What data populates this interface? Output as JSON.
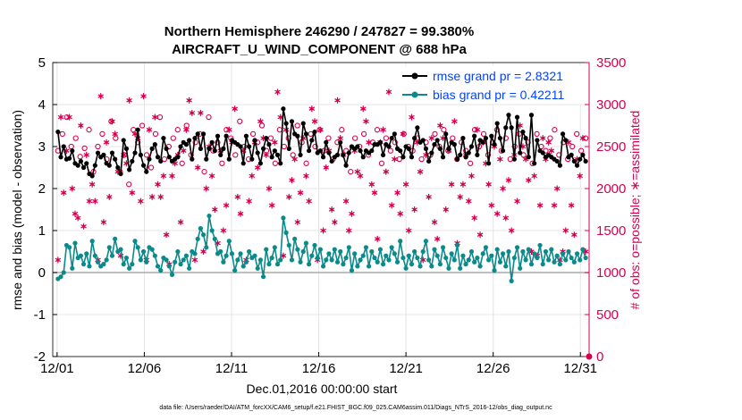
{
  "chart_data": {
    "type": "line",
    "title": "Northern Hemisphere 246290 / 247827 = 99.380%",
    "subtitle": "AIRCRAFT_U_WIND_COMPONENT @ 688 hPa",
    "xlabel": "Dec.01,2016 00:00:00 start",
    "ylabel": "rmse and bias (model - observation)",
    "ylabel_right": "# of obs: o=possible; ∗=assimilated",
    "footer": "data file: /Users/raeder/DAI/ATM_forcXX/CAM6_setup/f.e21.FHIST_BGC.f09_025.CAM6assim.011/Diags_NTrS_2016-12/obs_diag_output.nc",
    "xlim": [
      0.75,
      31.5
    ],
    "ylim": [
      -2,
      5
    ],
    "ylim_right": [
      0,
      3500
    ],
    "x_tick_labels": [
      "12/01",
      "12/06",
      "12/11",
      "12/16",
      "12/21",
      "12/26",
      "12/31"
    ],
    "x_tick_values": [
      1,
      6,
      11,
      16,
      21,
      26,
      31
    ],
    "y_ticks": [
      -2,
      -1,
      0,
      1,
      2,
      3,
      4,
      5
    ],
    "y_ticks_right": [
      0,
      500,
      1000,
      1500,
      2000,
      2500,
      3000,
      3500
    ],
    "grid": true,
    "legend_position": "top-right",
    "series": [
      {
        "name": "rmse",
        "legend_label": "rmse grand pr = 2.8321",
        "color": "#000000",
        "axis": "left",
        "values": [
          3.35,
          2.75,
          3.0,
          2.7,
          2.72,
          2.9,
          2.6,
          2.55,
          2.65,
          2.5,
          2.6,
          2.35,
          2.3,
          2.55,
          2.85,
          2.75,
          2.8,
          2.6,
          2.55,
          2.85,
          2.7,
          2.5,
          2.35,
          3.15,
          2.95,
          2.45,
          2.65,
          2.85,
          3.4,
          2.8,
          2.55,
          2.4,
          2.7,
          2.95,
          3.05,
          2.75,
          2.65,
          3.2,
          2.95,
          2.75,
          2.65,
          2.7,
          2.75,
          3.0,
          3.1,
          3.05,
          3.15,
          2.7,
          3.2,
          3.3,
          2.95,
          3.3,
          2.7,
          2.95,
          3.1,
          2.9,
          3.25,
          2.8,
          2.95,
          3.25,
          2.7,
          3.15,
          3.1,
          3.05,
          3.0,
          2.6,
          3.25,
          3.0,
          2.7,
          3.15,
          2.85,
          2.6,
          2.95,
          3.2,
          3.05,
          2.75,
          2.9,
          2.8,
          2.6,
          3.9,
          3.55,
          2.95,
          3.6,
          3.3,
          3.25,
          2.8,
          3.55,
          3.3,
          2.9,
          3.15,
          3.35,
          2.85,
          2.9,
          2.75,
          3.1,
          2.85,
          2.65,
          2.75,
          2.8,
          3.1,
          2.8,
          2.55,
          2.85,
          3.0,
          2.95,
          3.0,
          2.9,
          2.75,
          2.9,
          2.85,
          2.9,
          3.05,
          3.05,
          3.1,
          2.8,
          3.05,
          3.0,
          3.2,
          3.3,
          2.95,
          2.9,
          2.75,
          3.0,
          2.95,
          2.75,
          3.2,
          3.45,
          3.1,
          3.15,
          2.95,
          2.65,
          2.85,
          3.05,
          3.15,
          2.95,
          2.75,
          3.3,
          2.95,
          3.1,
          3.05,
          2.7,
          2.8,
          3.2,
          2.75,
          2.85,
          3.0,
          3.25,
          2.8,
          3.15,
          3.1,
          3.2,
          2.6,
          3.25,
          3.05,
          3.55,
          3.2,
          2.9,
          3.45,
          3.75,
          3.45,
          2.7,
          3.7,
          2.85,
          3.35,
          3.2,
          2.75,
          3.75,
          2.6,
          3.15,
          2.9,
          2.85,
          2.75,
          2.8,
          2.75,
          2.7,
          2.65,
          2.55,
          3.3,
          3.15,
          2.75,
          2.8,
          2.65,
          2.55,
          2.7,
          2.8,
          2.65
        ]
      },
      {
        "name": "bias",
        "legend_label": "bias grand pr = 0.42211",
        "color": "#0a8a8a",
        "axis": "left",
        "values": [
          -0.15,
          -0.1,
          0.0,
          0.65,
          0.6,
          0.1,
          0.7,
          0.35,
          0.4,
          0.2,
          0.45,
          0.15,
          0.75,
          0.4,
          0.25,
          0.15,
          0.2,
          0.3,
          0.6,
          0.4,
          0.8,
          0.5,
          0.55,
          0.2,
          0.35,
          0.1,
          0.2,
          0.75,
          0.6,
          0.3,
          0.5,
          0.25,
          0.6,
          0.55,
          0.4,
          0.15,
          0.05,
          0.35,
          0.3,
          0.15,
          -0.05,
          0.25,
          0.5,
          0.2,
          0.3,
          0.4,
          0.1,
          0.5,
          0.45,
          0.8,
          1.05,
          0.9,
          0.6,
          1.35,
          1.0,
          0.8,
          0.45,
          0.5,
          0.25,
          0.4,
          0.75,
          0.45,
          0.05,
          0.3,
          0.45,
          0.15,
          0.25,
          0.5,
          0.35,
          0.4,
          0.1,
          0.3,
          -0.1,
          0.55,
          0.2,
          0.35,
          0.6,
          0.2,
          0.3,
          1.3,
          0.95,
          0.65,
          0.3,
          0.8,
          0.55,
          0.25,
          0.5,
          0.7,
          0.2,
          0.4,
          0.65,
          0.35,
          0.55,
          0.15,
          0.3,
          0.45,
          0.3,
          0.55,
          0.25,
          0.5,
          0.2,
          0.35,
          0.6,
          0.05,
          0.45,
          0.15,
          0.3,
          0.4,
          0.6,
          0.15,
          0.5,
          0.35,
          0.25,
          0.55,
          0.2,
          0.4,
          0.3,
          0.6,
          0.45,
          0.25,
          0.75,
          0.35,
          0.1,
          0.4,
          0.2,
          0.5,
          0.35,
          0.15,
          0.5,
          0.75,
          0.3,
          0.15,
          0.55,
          0.4,
          0.2,
          0.6,
          0.35,
          0.1,
          0.45,
          0.3,
          0.65,
          0.1,
          0.4,
          0.2,
          0.3,
          0.5,
          0.25,
          0.35,
          0.15,
          0.45,
          0.6,
          0.3,
          0.4,
          0.05,
          0.55,
          0.25,
          0.45,
          0.15,
          0.5,
          -0.2,
          0.35,
          0.6,
          0.1,
          0.5,
          0.3,
          0.55,
          0.2,
          0.45,
          0.35,
          0.65,
          0.2,
          0.5,
          0.3,
          0.55,
          0.25,
          0.4,
          0.2,
          0.45,
          0.3,
          0.5,
          0.35,
          0.25,
          0.45,
          0.3,
          0.55,
          0.35
        ]
      },
      {
        "name": "obs possible",
        "color": "#d6004f",
        "axis": "right",
        "marker": "circle",
        "values": [
          2450,
          2650,
          2850,
          2500,
          2600,
          2380,
          2480,
          2700,
          2200,
          2500,
          2650,
          2350,
          2800,
          2600,
          2200,
          2400,
          2050,
          2700,
          2550,
          2750,
          2400,
          2250,
          2650,
          2850,
          2350,
          2500,
          2600,
          2700,
          2300,
          2750,
          2400,
          2550,
          2650,
          2200,
          2850,
          2450,
          2550,
          2300,
          2700,
          2600,
          2400,
          2800,
          2500,
          2350,
          2650,
          2550,
          2750,
          2450,
          2600,
          2300,
          2700,
          2500,
          2600,
          2400,
          2750,
          2550,
          2300,
          2650,
          2500,
          2700,
          2450,
          2600,
          2350,
          2550,
          2700,
          2450,
          2200,
          2600,
          2500,
          2650,
          2400,
          2550,
          2700,
          2300,
          2600,
          2450,
          2550,
          2350,
          2650,
          2500,
          2450,
          2600,
          2350,
          2550,
          2400,
          2650,
          2500,
          2700,
          2450,
          2600,
          2350,
          2550,
          2450,
          2300,
          2700,
          2500,
          2650,
          2400,
          2550,
          2700,
          2450,
          2600,
          2350,
          2500,
          2650,
          2400,
          2550,
          2300,
          2650,
          2500,
          2450,
          2600,
          2700,
          2400,
          2550,
          2350,
          2500,
          2650,
          2450,
          2600
        ]
      },
      {
        "name": "obs assimilated",
        "color": "#d6004f",
        "axis": "right",
        "marker": "asterisk",
        "values": [
          1150,
          2850,
          1950,
          2450,
          2850,
          2000,
          1700,
          1650,
          2750,
          1550,
          2400,
          1850,
          2050,
          1850,
          1150,
          3100,
          1600,
          2550,
          1900,
          2800,
          2650,
          2200,
          1200,
          2400,
          2300,
          3050,
          1950,
          2650,
          2600,
          1850,
          3100,
          1150,
          2700,
          1900,
          2850,
          2050,
          1900,
          2150,
          1450,
          1100,
          2150,
          2300,
          2400,
          1600,
          2450,
          2700,
          3050,
          2900,
          1150,
          2250,
          2900,
          1250,
          2000,
          2500,
          2150,
          1750,
          1350,
          2450,
          1500,
          1800,
          2700,
          2550,
          2950,
          1900,
          1700,
          2450,
          1150,
          1850,
          2150,
          2550,
          2250,
          2800,
          2600,
          2400,
          2000,
          1800,
          2550,
          3150,
          2850,
          1200,
          2700,
          1900,
          2100,
          2350,
          1600,
          1950,
          2600,
          2150,
          1850,
          2950,
          2800,
          1150,
          2700,
          1500,
          2250,
          2450,
          1750,
          1600,
          3050,
          2600,
          2400,
          1850,
          1500,
          1700,
          2450,
          2200,
          2150,
          2950,
          2800,
          2550,
          2050,
          1950,
          1400,
          2550,
          2700,
          2200,
          3150,
          1800,
          2350,
          1950,
          1700,
          2650,
          2050,
          1500,
          2850,
          1750,
          2550,
          2200,
          1150,
          2400,
          1900,
          2600,
          1600,
          1400,
          2750,
          2600,
          1750,
          2450,
          2050,
          2800,
          1350,
          1900,
          2050,
          2400,
          1850,
          2150,
          1650,
          2700,
          1450,
          2550,
          2300,
          2050,
          1800,
          2500,
          1700,
          2350,
          2000,
          1650,
          2100,
          1500,
          2400,
          1850,
          2750,
          2500,
          2350,
          2100,
          1250,
          2150,
          1200,
          1800,
          2600,
          2350,
          2550,
          2450,
          1800,
          2000,
          1150,
          1250,
          1500,
          2550,
          1800,
          1450,
          2350,
          2150,
          2600,
          1250
        ]
      }
    ]
  }
}
